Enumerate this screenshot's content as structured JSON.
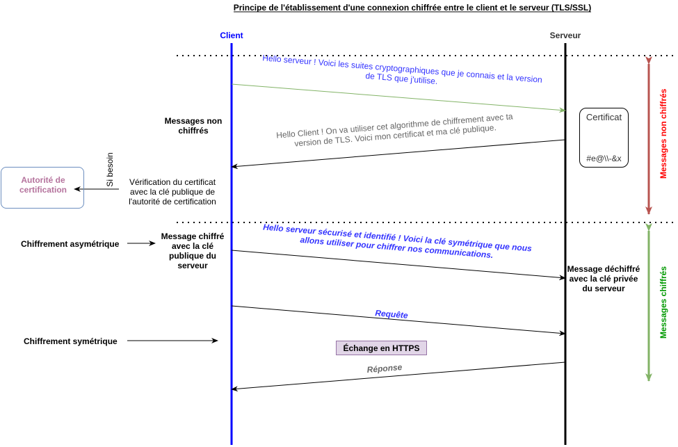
{
  "title": "Principe de l'établissement d'une connexion chiffrée entre le client et le serveur (TLS/SSL)",
  "lanes": {
    "client": "Client",
    "server": "Serveur"
  },
  "messages": {
    "hello_server": "Hello serveur ! Voici les suites cryptographiques que je connais et la version de TLS que j'utilise.",
    "hello_client": "Hello Client ! On va utiliser cet algorithme de chiffrement avec ta version de TLS. Voici mon certificat et ma clé publique.",
    "secure_hello": "Hello serveur sécurisé et identifié ! Voici la clé symétrique que nous allons utiliser pour chiffrer nos communications.",
    "request": "Requête",
    "response": "Réponse"
  },
  "certificate": {
    "title": "Certificat",
    "code": "#e@\\\\-&x"
  },
  "notes": {
    "unencrypted_messages": "Messages non chiffrés",
    "verification": "Vérification du certificat avec la clé publique de l'autorité de certification",
    "if_needed": "Si besoin",
    "authority": "Autorité de certification",
    "asymmetric": "Chiffrement asymétrique",
    "symmetric": "Chiffrement symétrique",
    "encrypted_with_pubkey": "Message chiffré avec la clé publique du serveur",
    "decrypted_with_privkey": "Message déchiffré avec la clé privée du serveur",
    "https": "Échange en HTTPS"
  },
  "side_labels": {
    "unencrypted": "Messages non chiffrés",
    "encrypted": "Messages chiffrés"
  },
  "colors": {
    "client_lane": "#0000ff",
    "server_lane": "#000000",
    "green_arrow": "#82b366",
    "red_arrow": "#b85450",
    "blue_text": "#3333ff",
    "grey_text": "#666666",
    "authority_border": "#6c8ebf",
    "authority_text": "#b5739d",
    "https_fill": "#e1d5e7",
    "https_border": "#9673a6",
    "unencrypted_label": "#ff0000",
    "encrypted_label": "#009900"
  }
}
